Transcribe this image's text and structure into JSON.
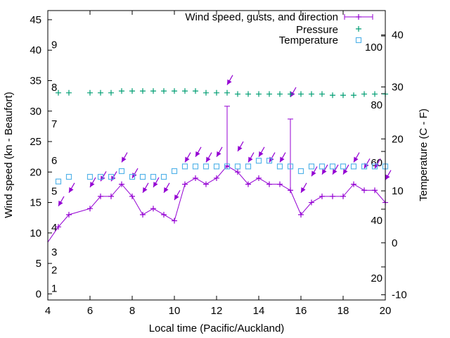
{
  "chart_data": {
    "type": "line",
    "xlabel": "Local time (Pacific/Auckland)",
    "ylabel": "Wind speed (kn - Beaufort)",
    "y2label": "Temperature (C - F)",
    "xlim": [
      4,
      20
    ],
    "xticks": [
      4,
      6,
      8,
      10,
      12,
      14,
      16,
      18,
      20
    ],
    "ylim": [
      -1,
      46.5
    ],
    "yticks": [
      0,
      5,
      10,
      15,
      20,
      25,
      30,
      35,
      40,
      45
    ],
    "y2lim": [
      -11,
      44.7
    ],
    "y2ticks": [
      -10,
      0,
      10,
      20,
      30,
      40
    ],
    "beaufort_labels": [
      {
        "label": "1",
        "kn": 1
      },
      {
        "label": "2",
        "kn": 4
      },
      {
        "label": "3",
        "kn": 7
      },
      {
        "label": "4",
        "kn": 11
      },
      {
        "label": "5",
        "kn": 17
      },
      {
        "label": "6",
        "kn": 22
      },
      {
        "label": "7",
        "kn": 28
      },
      {
        "label": "8",
        "kn": 34
      },
      {
        "label": "9",
        "kn": 41
      }
    ],
    "fahrenheit_labels": [
      {
        "label": "100",
        "f": 100
      },
      {
        "label": "80",
        "f": 80
      },
      {
        "label": "60",
        "f": 60
      },
      {
        "label": "40",
        "f": 40
      },
      {
        "label": "20",
        "f": 20
      }
    ],
    "legend": {
      "position": "top-right",
      "entries": [
        "Wind speed, gusts, and direction",
        "Pressure",
        "Temperature"
      ]
    },
    "series": [
      {
        "name": "Wind speed, gusts, and direction",
        "color": "#9400d3",
        "x": [
          4,
          4.5,
          5,
          6,
          6.5,
          7,
          7.5,
          8,
          8.5,
          9,
          9.5,
          10,
          10.5,
          11,
          11.5,
          12,
          12.5,
          13,
          13.5,
          14,
          14.5,
          15,
          15.5,
          16,
          16.5,
          17,
          17.5,
          18,
          18.5,
          19,
          19.5,
          20
        ],
        "speed": [
          8.5,
          11,
          13,
          14,
          16,
          16,
          18,
          16,
          13,
          14,
          13,
          12,
          18,
          19,
          18,
          19,
          21,
          20,
          18,
          19,
          18,
          18,
          17,
          13,
          15,
          16,
          16,
          16,
          18,
          17,
          17,
          15
        ],
        "gusts": [
          {
            "x": 12.5,
            "value": 30.8
          },
          {
            "x": 15.5,
            "value": 28.7
          }
        ],
        "arrow_level_kn": [
          null,
          14.4,
          16.6,
          17.5,
          18.5,
          18.5,
          21.6,
          19,
          16.6,
          17.5,
          16.6,
          15.4,
          21.6,
          22.5,
          21.6,
          22.5,
          34.3,
          23.4,
          21.6,
          22.5,
          21.6,
          21.6,
          32.3,
          16.6,
          19.3,
          19.6,
          19.6,
          19.6,
          21.6,
          20.6,
          20.6,
          18.7
        ],
        "direction_deg": 30
      },
      {
        "name": "Pressure",
        "color": "#009e73",
        "axis": "left",
        "x": [
          4.5,
          5,
          6,
          6.5,
          7,
          7.5,
          8,
          8.5,
          9,
          9.5,
          10,
          10.5,
          11,
          11.5,
          12,
          12.5,
          13,
          13.5,
          14,
          14.5,
          15,
          15.5,
          16,
          16.5,
          17,
          17.5,
          18,
          18.5,
          19,
          19.5,
          20
        ],
        "values": [
          33.0,
          33.0,
          33.0,
          33.0,
          33.0,
          33.3,
          33.3,
          33.3,
          33.3,
          33.3,
          33.3,
          33.3,
          33.3,
          33.0,
          33.0,
          33.0,
          32.8,
          32.8,
          32.8,
          32.8,
          32.8,
          32.8,
          32.8,
          32.8,
          32.8,
          32.6,
          32.6,
          32.6,
          32.8,
          32.8,
          32.8
        ]
      },
      {
        "name": "Temperature",
        "color": "#56b4e9",
        "axis": "right",
        "x": [
          4.5,
          5,
          6,
          6.5,
          7,
          7.5,
          8,
          8.5,
          9,
          9.5,
          10,
          10.5,
          11,
          11.5,
          12,
          12.5,
          13,
          13.5,
          14,
          14.5,
          15,
          15.5,
          16,
          16.5,
          17,
          17.5,
          18,
          18.5,
          19,
          19.5,
          20
        ],
        "values": [
          11.8,
          12.7,
          12.7,
          12.7,
          12.7,
          13.8,
          12.7,
          12.7,
          12.7,
          12.7,
          13.8,
          14.7,
          14.7,
          14.7,
          14.7,
          14.7,
          14.7,
          14.7,
          15.8,
          15.8,
          14.7,
          14.7,
          13.8,
          14.7,
          14.7,
          14.7,
          14.7,
          14.7,
          14.7,
          14.7,
          14.7
        ]
      }
    ]
  }
}
